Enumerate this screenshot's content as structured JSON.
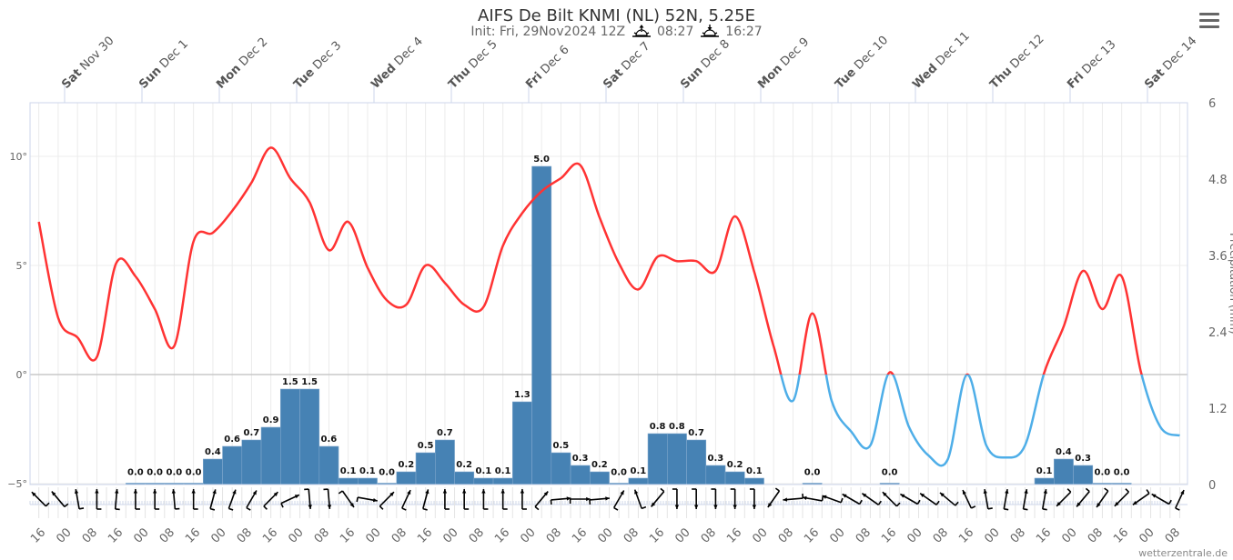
{
  "title": "AIFS De Bilt KNMI (NL) 52N, 5.25E",
  "subtitle": {
    "init": "Init: Fri, 29Nov2024 12Z",
    "sunrise_icon": "sunrise-icon",
    "sunrise": "08:27",
    "sunset_icon": "sunset-icon",
    "sunset": "16:27"
  },
  "menu_icon": "hamburger-menu-icon",
  "credit": "wetterzentrale.de",
  "chart_data": {
    "type": "line+bar",
    "colors": {
      "temp_above_zero": "#ff3333",
      "temp_below_zero": "#4eaee8",
      "precip": "#4682b4",
      "wind_arrow": "#000000"
    },
    "top_axis": [
      {
        "day": "Sat",
        "date": "Nov 30"
      },
      {
        "day": "Sun",
        "date": "Dec 1"
      },
      {
        "day": "Mon",
        "date": "Dec 2"
      },
      {
        "day": "Tue",
        "date": "Dec 3"
      },
      {
        "day": "Wed",
        "date": "Dec 4"
      },
      {
        "day": "Thu",
        "date": "Dec 5"
      },
      {
        "day": "Fri",
        "date": "Dec 6"
      },
      {
        "day": "Sat",
        "date": "Dec 7"
      },
      {
        "day": "Sun",
        "date": "Dec 8"
      },
      {
        "day": "Mon",
        "date": "Dec 9"
      },
      {
        "day": "Tue",
        "date": "Dec 10"
      },
      {
        "day": "Wed",
        "date": "Dec 11"
      },
      {
        "day": "Thu",
        "date": "Dec 12"
      },
      {
        "day": "Fri",
        "date": "Dec 13"
      },
      {
        "day": "Sat",
        "date": "Dec 14"
      }
    ],
    "bottom_axis_hours": [
      "16",
      "00",
      "08"
    ],
    "left_axis": {
      "ticks": [
        "10°",
        "5°",
        "0°",
        "−5°"
      ],
      "values": [
        10,
        5,
        0,
        -5
      ],
      "range": [
        -5,
        12.4
      ]
    },
    "right_axis": {
      "label": "Precipitation (mm)",
      "ticks": [
        "6",
        "4.8",
        "3.6",
        "2.4",
        "1.2",
        "0"
      ],
      "values": [
        6,
        4.8,
        3.6,
        2.4,
        1.2,
        0
      ],
      "range": [
        0,
        6
      ]
    },
    "grid": true,
    "temperature": [
      [
        "2024-11-29 16:00",
        7.0,
        315
      ],
      [
        "2024-11-29 22:00",
        2.6,
        320
      ],
      [
        "2024-11-30 04:00",
        1.7,
        350
      ],
      [
        "2024-11-30 10:00",
        0.8,
        0
      ],
      [
        "2024-11-30 16:00",
        5.1,
        5
      ],
      [
        "2024-11-30 22:00",
        4.5,
        0
      ],
      [
        "2024-12-01 04:00",
        3.0,
        0
      ],
      [
        "2024-12-01 10:00",
        1.3,
        355
      ],
      [
        "2024-12-01 16:00",
        6.1,
        0
      ],
      [
        "2024-12-01 22:00",
        6.5,
        15
      ],
      [
        "2024-12-02 04:00",
        7.5,
        20
      ],
      [
        "2024-12-02 10:00",
        8.8,
        30
      ],
      [
        "2024-12-02 16:00",
        10.4,
        45
      ],
      [
        "2024-12-02 22:00",
        9.0,
        65
      ],
      [
        "2024-12-03 04:00",
        7.9,
        175
      ],
      [
        "2024-12-03 10:00",
        5.7,
        175
      ],
      [
        "2024-12-03 16:00",
        7.0,
        145
      ],
      [
        "2024-12-03 22:00",
        4.9,
        100
      ],
      [
        "2024-12-04 04:00",
        3.4,
        45
      ],
      [
        "2024-12-04 10:00",
        3.2,
        25
      ],
      [
        "2024-12-04 16:00",
        5.0,
        15
      ],
      [
        "2024-12-04 22:00",
        4.2,
        0
      ],
      [
        "2024-12-05 04:00",
        3.2,
        0
      ],
      [
        "2024-12-05 10:00",
        3.1,
        0
      ],
      [
        "2024-12-05 16:00",
        5.9,
        0
      ],
      [
        "2024-12-05 22:00",
        7.4,
        0
      ],
      [
        "2024-12-06 04:00",
        8.4,
        40
      ],
      [
        "2024-12-06 10:00",
        9.0,
        85
      ],
      [
        "2024-12-06 16:00",
        9.6,
        90
      ],
      [
        "2024-12-06 22:00",
        7.2,
        85
      ],
      [
        "2024-12-07 04:00",
        5.1,
        30
      ],
      [
        "2024-12-07 10:00",
        3.9,
        340
      ],
      [
        "2024-12-07 16:00",
        5.4,
        220
      ],
      [
        "2024-12-07 22:00",
        5.2,
        180
      ],
      [
        "2024-12-08 04:00",
        5.2,
        180
      ],
      [
        "2024-12-08 10:00",
        4.75,
        180
      ],
      [
        "2024-12-08 16:00",
        7.25,
        180
      ],
      [
        "2024-12-08 22:00",
        4.7,
        180
      ],
      [
        "2024-12-09 04:00",
        1.3,
        215
      ],
      [
        "2024-12-09 10:00",
        -1.2,
        265
      ],
      [
        "2024-12-09 16:00",
        2.8,
        280
      ],
      [
        "2024-12-09 22:00",
        -1.2,
        290
      ],
      [
        "2024-12-10 04:00",
        -2.6,
        300
      ],
      [
        "2024-12-10 10:00",
        -3.25,
        305
      ],
      [
        "2024-12-10 16:00",
        0.1,
        315
      ],
      [
        "2024-12-10 22:00",
        -2.4,
        300
      ],
      [
        "2024-12-11 04:00",
        -3.7,
        305
      ],
      [
        "2024-12-11 10:00",
        -3.9,
        310
      ],
      [
        "2024-12-11 16:00",
        0.0,
        335
      ],
      [
        "2024-12-11 22:00",
        -3.25,
        350
      ],
      [
        "2024-12-12 04:00",
        -3.8,
        10
      ],
      [
        "2024-12-12 10:00",
        -3.25,
        10
      ],
      [
        "2024-12-12 16:00",
        0.1,
        10
      ],
      [
        "2024-12-12 22:00",
        2.2,
        225
      ],
      [
        "2024-12-13 04:00",
        4.75,
        220
      ],
      [
        "2024-12-13 10:00",
        3.0,
        215
      ],
      [
        "2024-12-13 16:00",
        4.5,
        225
      ],
      [
        "2024-12-13 22:00",
        0.1,
        235
      ],
      [
        "2024-12-14 04:00",
        -2.4,
        300
      ],
      [
        "2024-12-14 10:00",
        -2.8,
        25
      ]
    ],
    "temperature_columns": [
      "time",
      "temp_c",
      "wind_to_deg"
    ],
    "precipitation": [
      [
        "2024-12-01 01:00",
        0.0
      ],
      [
        "2024-12-01 07:00",
        0.0
      ],
      [
        "2024-12-01 13:00",
        0.0
      ],
      [
        "2024-12-01 19:00",
        0.0
      ],
      [
        "2024-12-02 01:00",
        0.4
      ],
      [
        "2024-12-02 07:00",
        0.6
      ],
      [
        "2024-12-02 13:00",
        0.7
      ],
      [
        "2024-12-02 19:00",
        0.9
      ],
      [
        "2024-12-03 01:00",
        1.5
      ],
      [
        "2024-12-03 07:00",
        1.5
      ],
      [
        "2024-12-03 13:00",
        0.6
      ],
      [
        "2024-12-03 19:00",
        0.1
      ],
      [
        "2024-12-04 01:00",
        0.1
      ],
      [
        "2024-12-04 07:00",
        0.0
      ],
      [
        "2024-12-04 13:00",
        0.2
      ],
      [
        "2024-12-04 19:00",
        0.5
      ],
      [
        "2024-12-05 01:00",
        0.7
      ],
      [
        "2024-12-05 07:00",
        0.2
      ],
      [
        "2024-12-05 13:00",
        0.1
      ],
      [
        "2024-12-05 19:00",
        0.1
      ],
      [
        "2024-12-06 01:00",
        1.3
      ],
      [
        "2024-12-06 07:00",
        5.0
      ],
      [
        "2024-12-06 13:00",
        0.5
      ],
      [
        "2024-12-06 19:00",
        0.3
      ],
      [
        "2024-12-07 01:00",
        0.2
      ],
      [
        "2024-12-07 07:00",
        0.0
      ],
      [
        "2024-12-07 13:00",
        0.1
      ],
      [
        "2024-12-07 19:00",
        0.8
      ],
      [
        "2024-12-08 01:00",
        0.8
      ],
      [
        "2024-12-08 07:00",
        0.7
      ],
      [
        "2024-12-08 13:00",
        0.3
      ],
      [
        "2024-12-08 19:00",
        0.2
      ],
      [
        "2024-12-09 01:00",
        0.1
      ],
      [
        "2024-12-09 19:00",
        0.0
      ],
      [
        "2024-12-10 19:00",
        0.0
      ],
      [
        "2024-12-12 19:00",
        0.1
      ],
      [
        "2024-12-13 01:00",
        0.4
      ],
      [
        "2024-12-13 07:00",
        0.3
      ],
      [
        "2024-12-13 13:00",
        0.0
      ],
      [
        "2024-12-13 19:00",
        0.0
      ]
    ],
    "precipitation_columns": [
      "period_end",
      "mm"
    ]
  }
}
